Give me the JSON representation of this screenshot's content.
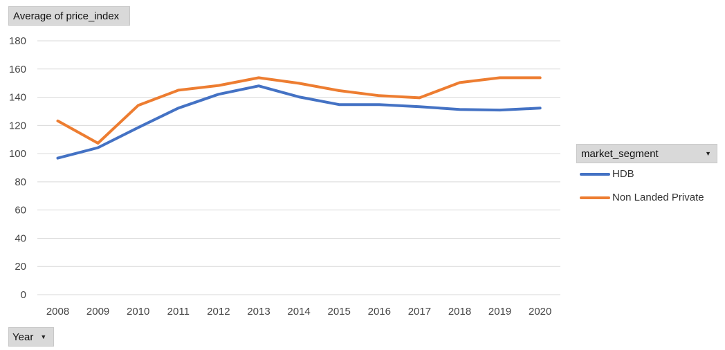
{
  "value_field": {
    "label": "Average of price_index"
  },
  "axis_field": {
    "label": "Year"
  },
  "legend_field": {
    "label": "market_segment"
  },
  "colors": {
    "HDB": "#4472c4",
    "Non Landed Private": "#ed7d31",
    "grid": "#d9d9d9"
  },
  "chart_data": {
    "type": "line",
    "x": [
      "2008",
      "2009",
      "2010",
      "2011",
      "2012",
      "2013",
      "2014",
      "2015",
      "2016",
      "2017",
      "2018",
      "2019",
      "2020"
    ],
    "ylim": [
      0,
      180
    ],
    "yticks": [
      0,
      20,
      40,
      60,
      80,
      100,
      120,
      140,
      160,
      180
    ],
    "grid": true,
    "legend_position": "right",
    "series": [
      {
        "name": "HDB",
        "values": [
          96.8,
          104.2,
          118.5,
          132.3,
          142.1,
          148.0,
          140.2,
          134.8,
          134.8,
          133.3,
          131.3,
          130.9,
          132.3
        ]
      },
      {
        "name": "Non Landed Private",
        "values": [
          123.2,
          107.4,
          134.2,
          145.0,
          148.3,
          153.8,
          149.9,
          144.7,
          141.1,
          139.6,
          150.4,
          153.8,
          153.8
        ]
      }
    ]
  }
}
